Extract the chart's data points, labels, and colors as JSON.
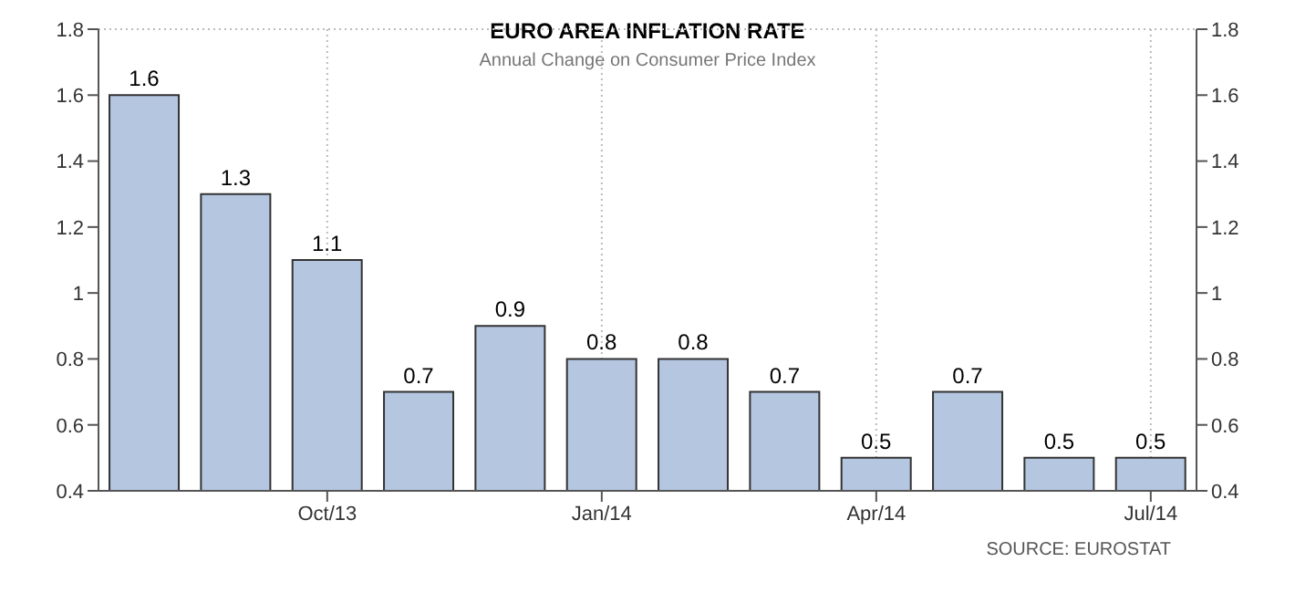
{
  "chart_data": {
    "type": "bar",
    "title": "EURO AREA INFLATION RATE",
    "subtitle": "Annual Change on Consumer Price Index",
    "categories": [
      null,
      null,
      "Oct/13",
      null,
      null,
      "Jan/14",
      null,
      null,
      "Apr/14",
      null,
      null,
      "Jul/14"
    ],
    "values": [
      1.6,
      1.3,
      1.1,
      0.7,
      0.9,
      0.8,
      0.8,
      0.7,
      0.5,
      0.7,
      0.5,
      0.5
    ],
    "color": "#b4c6e0",
    "ylim": [
      0.4,
      1.8
    ],
    "yticks": [
      0.4,
      0.6,
      0.8,
      1,
      1.2,
      1.4,
      1.6,
      1.8
    ],
    "y2lim": [
      0.4,
      1.8
    ],
    "y2ticks": [
      0.4,
      0.6,
      0.8,
      1,
      1.2,
      1.4,
      1.6,
      1.8
    ],
    "data_labels": true,
    "grid": true,
    "legend": false,
    "annotations": [
      "SOURCE: EUROSTAT"
    ]
  }
}
